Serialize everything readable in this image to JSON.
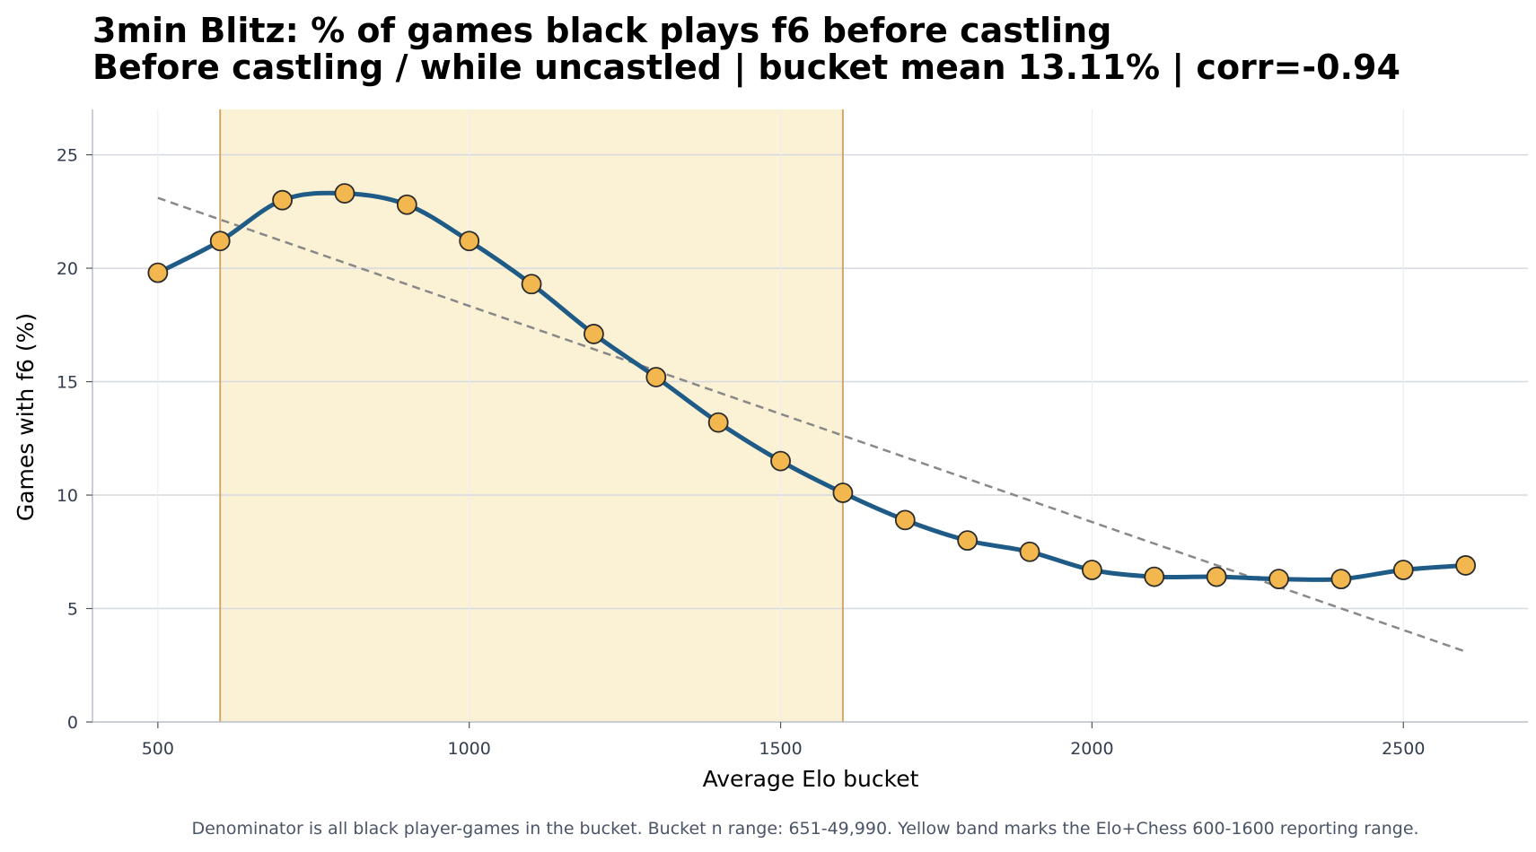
{
  "chart_data": {
    "type": "line",
    "title": "3min Blitz: % of games black plays f6 before castling",
    "subtitle": "Before castling / while uncastled | bucket mean 13.11% | corr=-0.94",
    "xlabel": "Average Elo bucket",
    "ylabel": "Games with f6 (%)",
    "xlim": [
      395,
      2700
    ],
    "ylim": [
      0,
      27
    ],
    "x_ticks": [
      500,
      1000,
      1500,
      2000,
      2500
    ],
    "y_ticks": [
      0,
      5,
      10,
      15,
      20,
      25
    ],
    "grid": true,
    "x": [
      500,
      600,
      700,
      800,
      900,
      1000,
      1100,
      1200,
      1300,
      1400,
      1500,
      1600,
      1700,
      1800,
      1900,
      2000,
      2100,
      2200,
      2300,
      2400,
      2500,
      2600
    ],
    "series": [
      {
        "values": [
          19.8,
          21.2,
          23.0,
          23.3,
          22.8,
          21.2,
          19.3,
          17.1,
          15.2,
          13.2,
          11.5,
          10.1,
          8.9,
          8.0,
          7.5,
          6.7,
          6.4,
          6.4,
          6.3,
          6.3,
          6.7,
          6.9
        ]
      }
    ],
    "trend_line": {
      "x": [
        500,
        2600
      ],
      "y": [
        23.1,
        3.1
      ]
    },
    "highlight_band": {
      "x_start": 600,
      "x_end": 1600
    },
    "footnote": "Denominator is all black player-games in the bucket. Bucket n range: 651-49,990. Yellow band marks the Elo+Chess 600-1600 reporting range.",
    "colors": {
      "line": "#1f5b87",
      "marker_fill": "#f2b84f",
      "marker_edge": "#2b2b2b",
      "band_fill": "#fbf1d4",
      "band_edge": "#d1a86a",
      "trend": "#888888",
      "grid": "#d5d9e0",
      "axis": "#b8bec8"
    }
  }
}
